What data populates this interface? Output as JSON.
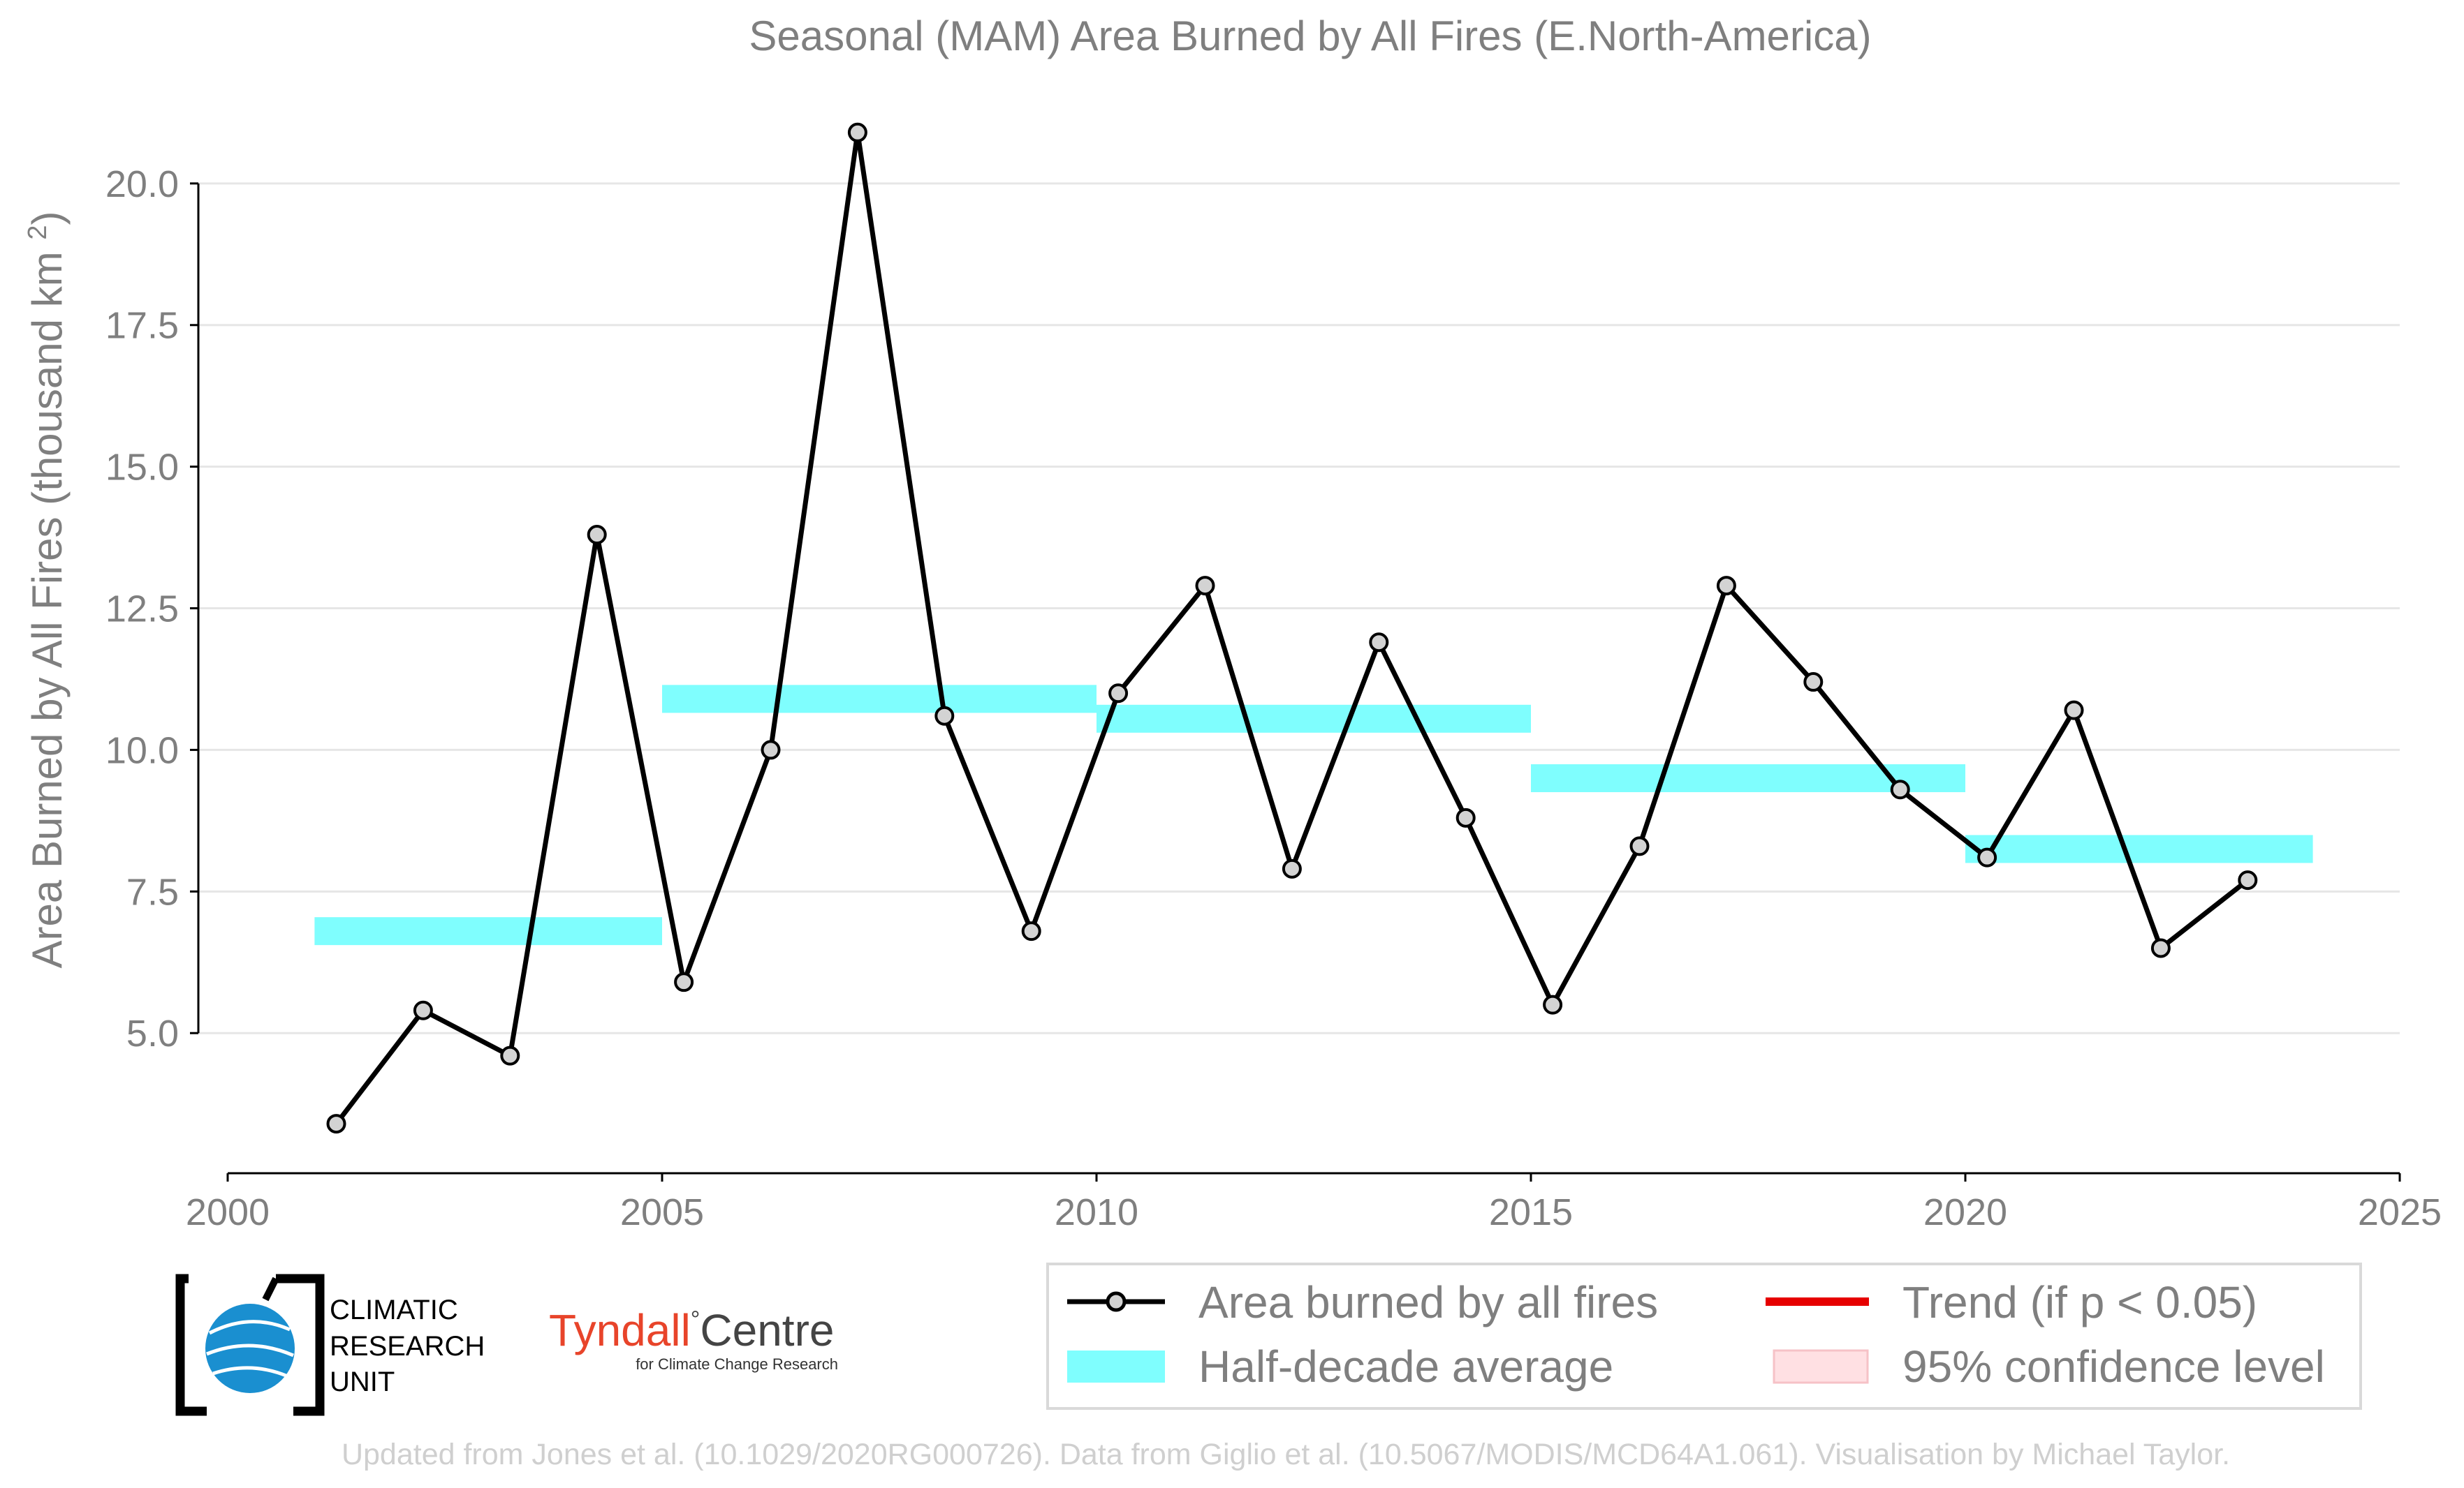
{
  "chart_data": {
    "type": "line",
    "title": "Seasonal (MAM) Area Burned by All Fires (E.North-America)",
    "ylabel": "Area Burned by All Fires (thousand km²)",
    "xlabel": "",
    "xlim": [
      2000,
      2025
    ],
    "ylim": [
      2.6,
      21.6
    ],
    "x_ticks": [
      2000,
      2005,
      2010,
      2015,
      2020,
      2025
    ],
    "x_tick_labels": [
      "2000",
      "2005",
      "2010",
      "2015",
      "2020",
      "2025"
    ],
    "y_ticks": [
      5.0,
      7.5,
      10.0,
      12.5,
      15.0,
      17.5,
      20.0
    ],
    "y_tick_labels": [
      "5.0",
      "7.5",
      "10.0",
      "12.5",
      "15.0",
      "17.5",
      "20.0"
    ],
    "grid": true,
    "series": [
      {
        "name": "Area burned by all fires",
        "color": "#000000",
        "marker_fill": "#d3d3d3",
        "x": [
          2001.25,
          2002.25,
          2003.25,
          2004.25,
          2005.25,
          2006.25,
          2007.25,
          2008.25,
          2009.25,
          2010.25,
          2011.25,
          2012.25,
          2013.25,
          2014.25,
          2015.25,
          2016.25,
          2017.25,
          2018.25,
          2019.25,
          2020.25,
          2021.25,
          2022.25,
          2023.25
        ],
        "y": [
          3.4,
          5.4,
          4.6,
          13.8,
          5.9,
          10.0,
          20.9,
          10.6,
          6.8,
          11.0,
          12.9,
          7.9,
          11.9,
          8.8,
          5.5,
          8.3,
          12.9,
          11.2,
          9.3,
          8.1,
          10.7,
          6.5,
          7.7
        ]
      },
      {
        "name": "Half-decade average",
        "color": "#7ffefe",
        "segments": [
          {
            "x0": 2001,
            "x1": 2005,
            "y": 6.8
          },
          {
            "x0": 2005,
            "x1": 2010,
            "y": 10.9
          },
          {
            "x0": 2010,
            "x1": 2015,
            "y": 10.55
          },
          {
            "x0": 2015,
            "x1": 2020,
            "y": 9.5
          },
          {
            "x0": 2020,
            "x1": 2024,
            "y": 8.25
          }
        ]
      }
    ],
    "legend": {
      "placement": "bottom-right",
      "entries": [
        {
          "label": "Area burned by all fires",
          "color": "#000000"
        },
        {
          "label": "Trend (if p < 0.05)",
          "color": "#e60000"
        },
        {
          "label": "Half-decade average",
          "color": "#7ffefe"
        },
        {
          "label": "95% confidence level",
          "color": "#ffe0e3"
        }
      ]
    }
  },
  "logos": {
    "cru_lines": [
      "CLIMATIC",
      "RESEARCH",
      "UNIT"
    ],
    "tyndall_main": "Tyndall",
    "tyndall_degree": "°",
    "tyndall_centre": "Centre",
    "tyndall_sub": "for Climate Change Research"
  },
  "footer": "Updated from Jones et al. (10.1029/2020RG000726). Data from Giglio et al. (10.5067/MODIS/MCD64A1.061). Visualisation by Michael Taylor."
}
